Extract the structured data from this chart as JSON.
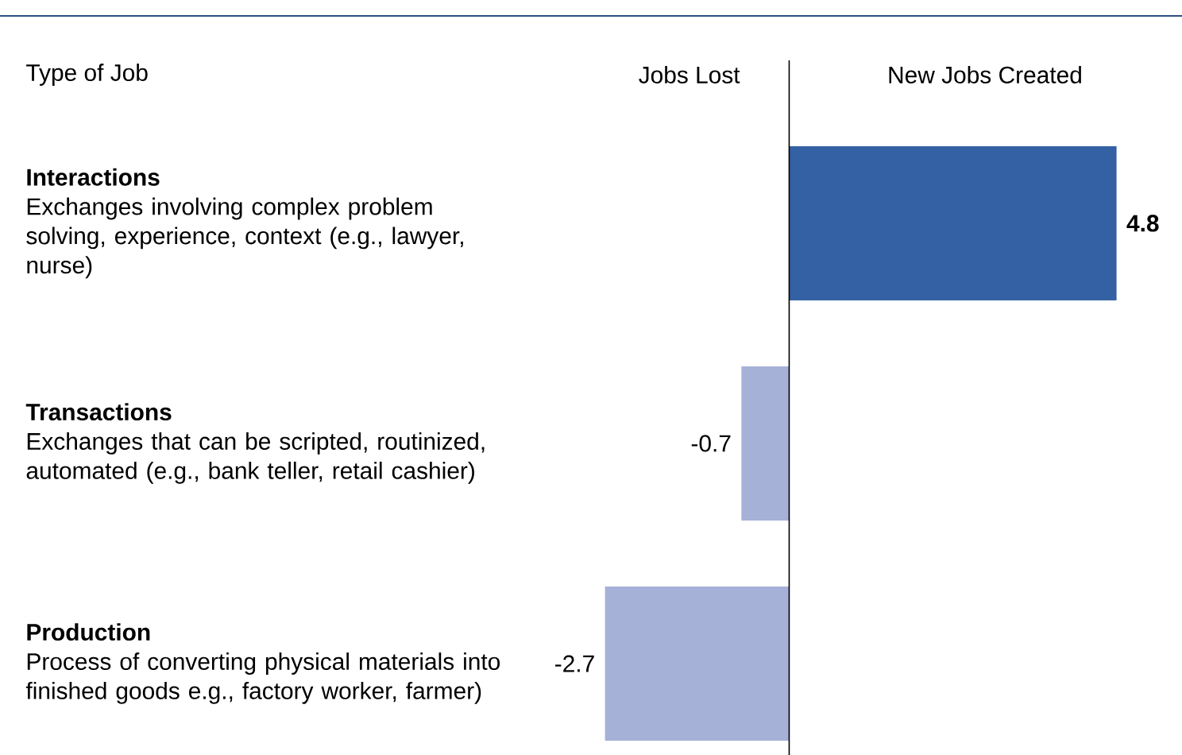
{
  "chart_data": {
    "type": "bar",
    "orientation": "horizontal",
    "data_labels": true,
    "categories": [
      "**Interactions** Exchanges involving complex problem solving, experience, context (e.g., lawyer, nurse)",
      "**Transactions** Exchanges that can be scripted, routinized, automated (e.g., bank teller, retail cashier)",
      "**Production** Process of converting physical materials into finished goods e.g., factory worker, farmer)"
    ],
    "values": [
      4.8,
      -0.7,
      -2.7
    ],
    "colors": [
      "#3461a3",
      "#a6b1d8",
      "#a6b1d8"
    ],
    "annotations": [
      "Type of Job",
      "Jobs Lost",
      "New Jobs Created"
    ]
  }
}
